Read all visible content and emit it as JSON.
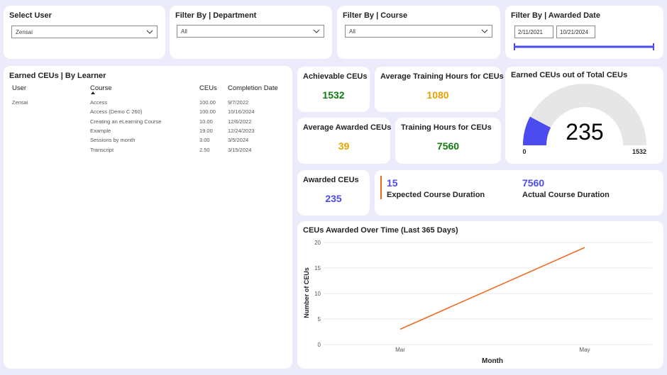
{
  "filters": {
    "user": {
      "title": "Select User",
      "value": "Zensai"
    },
    "department": {
      "title": "Filter By | Department",
      "value": "All"
    },
    "course": {
      "title": "Filter By | Course",
      "value": "All"
    },
    "date": {
      "title": "Filter By | Awarded Date",
      "start": "2/11/2021",
      "end": "10/21/2024"
    }
  },
  "learner_table": {
    "title": "Earned CEUs | By Learner",
    "headers": {
      "user": "User",
      "course": "Course",
      "ceus": "CEUs",
      "completion": "Completion Date"
    },
    "user": "Zensai",
    "rows": [
      {
        "course": "Access",
        "ceus": "100.00",
        "date": "9/7/2022"
      },
      {
        "course": "Access (Demo C 260)",
        "ceus": "100.00",
        "date": "10/16/2024"
      },
      {
        "course": "Creating an eLearning Course",
        "ceus": "10.00",
        "date": "12/6/2022"
      },
      {
        "course": "Example",
        "ceus": "19.00",
        "date": "12/24/2023"
      },
      {
        "course": "Sessions by month",
        "ceus": "3.00",
        "date": "3/5/2024"
      },
      {
        "course": "Transcript",
        "ceus": "2.50",
        "date": "3/15/2024"
      }
    ]
  },
  "kpis": {
    "achievable": {
      "label": "Achievable CEUs",
      "value": "1532"
    },
    "avg_training_hours": {
      "label": "Average Training Hours for CEUs",
      "value": "1080"
    },
    "avg_awarded": {
      "label": "Average Awarded CEUs",
      "value": "39"
    },
    "training_hours": {
      "label": "Training Hours for CEUs",
      "value": "7560"
    },
    "awarded": {
      "label": "Awarded CEUs",
      "value": "235"
    },
    "expected_duration": {
      "label": "Expected Course Duration",
      "value": "15"
    },
    "actual_duration": {
      "label": "Actual Course Duration",
      "value": "7560"
    }
  },
  "gauge": {
    "title": "Earned CEUs out of Total CEUs",
    "value": "235",
    "min": "0",
    "max": "1532",
    "fraction": 0.1534
  },
  "colors": {
    "green": "#107c10",
    "orange": "#e8a200",
    "blue": "#4b4bf0",
    "line": "#f26419",
    "gauge_track": "#e6e6e6"
  },
  "chart_data": {
    "type": "line",
    "title": "CEUs Awarded Over Time (Last 365 Days)",
    "xlabel": "Month",
    "ylabel": "Number of CEUs",
    "categories": [
      "Mar",
      "May"
    ],
    "series": [
      {
        "values": [
          3,
          19
        ]
      }
    ],
    "ylim": [
      0,
      20
    ],
    "yticks": [
      "0",
      "5",
      "10",
      "15",
      "20"
    ],
    "grid": true
  }
}
